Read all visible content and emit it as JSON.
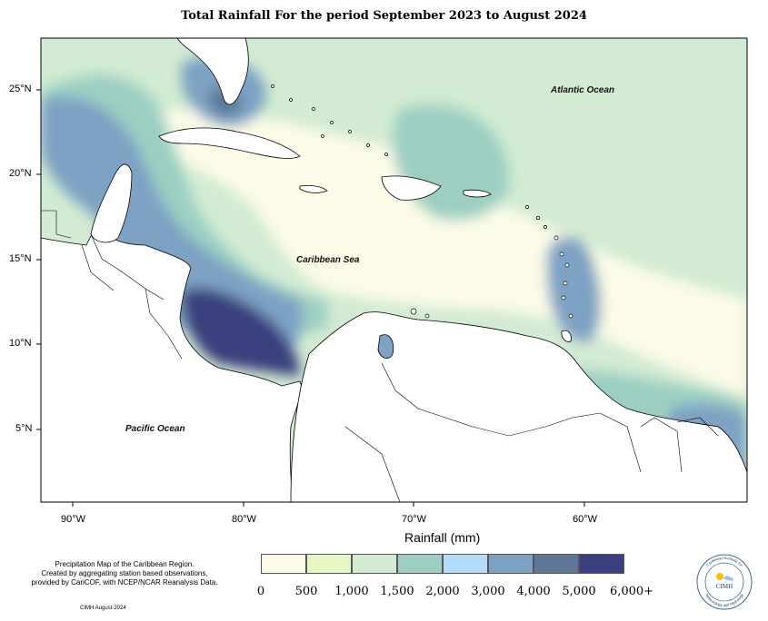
{
  "title": "Total Rainfall For the period September 2023 to August 2024",
  "axes": {
    "longitude_ticks": [
      "90°W",
      "80°W",
      "70°W",
      "60°W"
    ],
    "latitude_ticks": [
      "25°N",
      "20°N",
      "15°N",
      "10°N",
      "5°N"
    ],
    "xlabel": "Rainfall (mm)"
  },
  "ocean_labels": {
    "atlantic": "Atlantic Ocean",
    "caribbean": "Caribbean Sea",
    "pacific": "Pacific Ocean"
  },
  "legend": {
    "labels": [
      "0",
      "500",
      "1,000",
      "1,500",
      "2,000",
      "3,000",
      "4,000",
      "5,000",
      "6,000+"
    ],
    "colors": [
      "#fcfbe7",
      "#e5f8c4",
      "#d2ebd2",
      "#9ccfc2",
      "#b4dcf9",
      "#7da2c3",
      "#5c7896",
      "#3a3f7e"
    ]
  },
  "notes": {
    "description_line1": "Precipitation Map of the Caribbean Region.",
    "description_line2": "Created by aggregating station based observations,",
    "description_line3": "provided by CariCOF, with NCEP/NCAR Reanalysis Data.",
    "credit": "CIMH August-2024"
  },
  "logo": {
    "text": "CIMH",
    "ring_top": "Caribbean Institute for",
    "ring_bottom": "Meteorology and Hydrology"
  },
  "chart_data": {
    "type": "heatmap",
    "title": "Total Rainfall For the period September 2023 to August 2024",
    "xlabel": "Rainfall (mm)",
    "x_ticks": [
      "90°W",
      "80°W",
      "70°W",
      "60°W"
    ],
    "y_ticks": [
      "25°N",
      "20°N",
      "15°N",
      "10°N",
      "5°N"
    ],
    "color_scale": {
      "breaks": [
        0,
        500,
        1000,
        1500,
        2000,
        3000,
        4000,
        5000,
        6000
      ],
      "colors": [
        "#fcfbe7",
        "#e5f8c4",
        "#d2ebd2",
        "#9ccfc2",
        "#b4dcf9",
        "#7da2c3",
        "#5c7896",
        "#3a3f7e"
      ]
    }
  }
}
